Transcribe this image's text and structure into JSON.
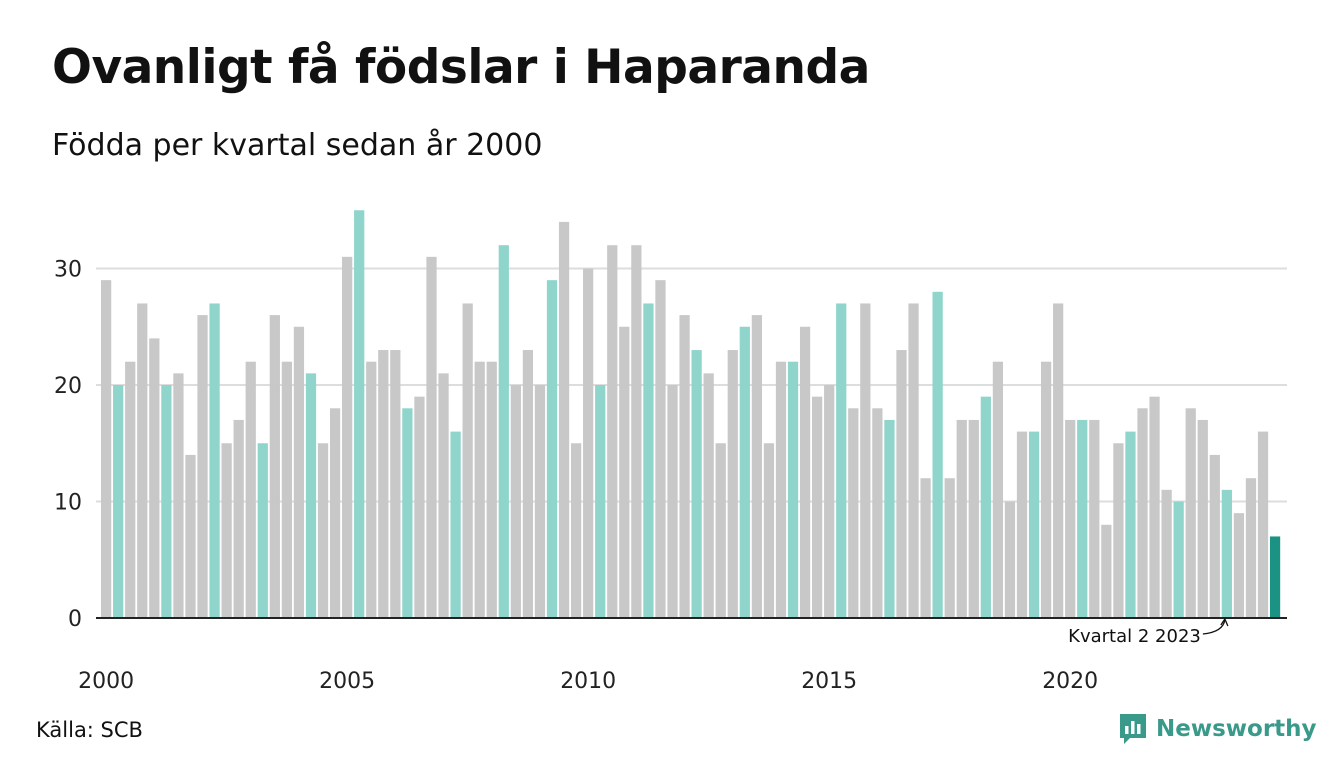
{
  "chart_data": {
    "type": "bar",
    "title": "Ovanligt få födslar i Haparanda",
    "subtitle": "Födda per kvartal sedan år 2000",
    "start_year": 2000,
    "values": [
      29,
      20,
      22,
      27,
      24,
      20,
      21,
      14,
      26,
      27,
      15,
      17,
      22,
      15,
      26,
      22,
      25,
      21,
      15,
      18,
      31,
      35,
      22,
      23,
      23,
      18,
      19,
      31,
      21,
      16,
      27,
      22,
      22,
      32,
      20,
      23,
      20,
      29,
      34,
      15,
      30,
      20,
      32,
      25,
      32,
      27,
      29,
      20,
      26,
      23,
      21,
      15,
      23,
      25,
      26,
      15,
      22,
      22,
      25,
      19,
      20,
      27,
      18,
      27,
      18,
      17,
      23,
      27,
      12,
      28,
      12,
      17,
      17,
      19,
      22,
      10,
      16,
      16,
      22,
      27,
      17,
      17,
      17,
      8,
      15,
      16,
      18,
      19,
      11,
      10,
      18,
      17,
      14,
      11,
      9,
      12,
      16,
      7
    ],
    "highlight_quarter": 2,
    "ylim": [
      0,
      37
    ],
    "yticks": [
      0,
      10,
      20,
      30
    ],
    "xticks": [
      "2000",
      "2005",
      "2010",
      "2015",
      "2020"
    ],
    "grid": true,
    "annotation": "Kvartal 2 2023",
    "colors": {
      "default": "#c8c8c8",
      "highlight": "#8fd5cc",
      "latest": "#1a9385",
      "grid": "#dddddd",
      "axis": "#222222"
    }
  },
  "footer": {
    "source": "Källa: SCB",
    "brand": "Newsworthy"
  }
}
